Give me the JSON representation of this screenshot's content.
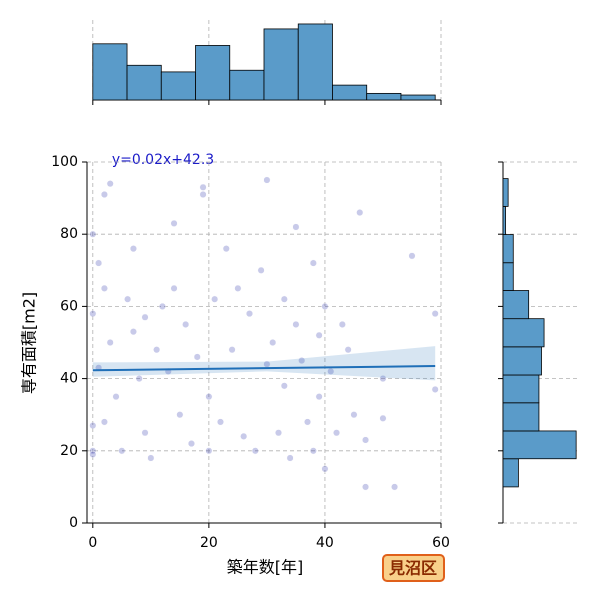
{
  "chart_data": {
    "type": "jointplot",
    "xlabel": "築年数[年]",
    "ylabel": "専有面積[m2]",
    "annotation": "y=0.02x+42.3",
    "label": "見沼区",
    "xlim": [
      -1,
      60
    ],
    "ylim": [
      0,
      100
    ],
    "xticks": [
      0,
      20,
      40,
      60
    ],
    "yticks": [
      0,
      20,
      40,
      60,
      80,
      100
    ],
    "grid": true,
    "point_color": "#3a3fb0",
    "line_color": "#1f6fb8",
    "bar_color": "#5a9bc9",
    "x": [
      0,
      0,
      0,
      0,
      0,
      1,
      1,
      2,
      2,
      2,
      3,
      3,
      4,
      5,
      6,
      7,
      7,
      8,
      9,
      9,
      10,
      11,
      12,
      13,
      14,
      14,
      15,
      16,
      17,
      18,
      19,
      19,
      20,
      20,
      21,
      22,
      23,
      24,
      25,
      26,
      27,
      28,
      29,
      30,
      30,
      31,
      32,
      33,
      33,
      34,
      35,
      35,
      36,
      37,
      38,
      38,
      39,
      39,
      40,
      40,
      41,
      42,
      43,
      44,
      45,
      46,
      47,
      47,
      50,
      50,
      52,
      55,
      59,
      59
    ],
    "y": [
      80,
      58,
      27,
      20,
      19,
      72,
      43,
      91,
      65,
      28,
      94,
      50,
      35,
      20,
      62,
      76,
      53,
      40,
      57,
      25,
      18,
      48,
      60,
      42,
      83,
      65,
      30,
      55,
      22,
      46,
      91,
      93,
      35,
      20,
      62,
      28,
      76,
      48,
      65,
      24,
      58,
      20,
      70,
      95,
      44,
      50,
      25,
      62,
      38,
      18,
      82,
      55,
      45,
      28,
      72,
      20,
      52,
      35,
      15,
      60,
      42,
      25,
      55,
      48,
      30,
      86,
      23,
      10,
      40,
      29,
      10,
      74,
      58,
      37
    ],
    "regression": {
      "slope": 0.02,
      "intercept": 42.3,
      "ci_x": [
        0,
        30,
        59
      ],
      "ci_lower": [
        40.5,
        42,
        39.5
      ],
      "ci_upper": [
        44.5,
        44.7,
        49
      ]
    },
    "x_hist": {
      "bins": [
        0,
        5.9,
        11.8,
        17.7,
        23.6,
        29.5,
        35.4,
        41.3,
        47.2,
        53.1,
        59
      ],
      "counts": [
        34,
        21,
        17,
        33,
        18,
        43,
        46,
        9,
        4,
        3
      ],
      "ylim": [
        0,
        48.4
      ]
    },
    "y_hist": {
      "bins": [
        10,
        17.8,
        25.5,
        33.3,
        41,
        48.8,
        56.6,
        64.4,
        72.1,
        79.9,
        87.7,
        95.4
      ],
      "counts": [
        12,
        57,
        28,
        28,
        30,
        32,
        20,
        8,
        8,
        2,
        4
      ],
      "xlim": [
        0,
        60
      ]
    }
  }
}
